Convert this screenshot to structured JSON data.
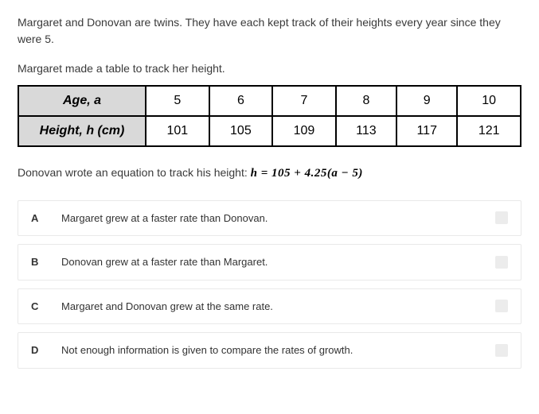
{
  "intro": "Margaret and Donovan are twins. They have each kept track of their heights every year since they were 5.",
  "table_prompt": "Margaret made a table to track her height.",
  "table": {
    "row1_label": "Age, a",
    "row2_label": "Height, h (cm)",
    "ages": [
      "5",
      "6",
      "7",
      "8",
      "9",
      "10"
    ],
    "heights": [
      "101",
      "105",
      "109",
      "113",
      "117",
      "121"
    ],
    "header_bg": "#d9d9d9",
    "border_color": "#000000"
  },
  "equation_prompt": "Donovan wrote an equation to track his height: ",
  "equation": "h  =  105 + 4.25(a  −  5)",
  "choices": [
    {
      "letter": "A",
      "text": "Margaret grew at a faster rate than Donovan."
    },
    {
      "letter": "B",
      "text": "Donovan grew at a faster rate than Margaret."
    },
    {
      "letter": "C",
      "text": "Margaret and Donovan grew at the same rate."
    },
    {
      "letter": "D",
      "text": "Not enough information is given to compare the rates of growth."
    }
  ]
}
